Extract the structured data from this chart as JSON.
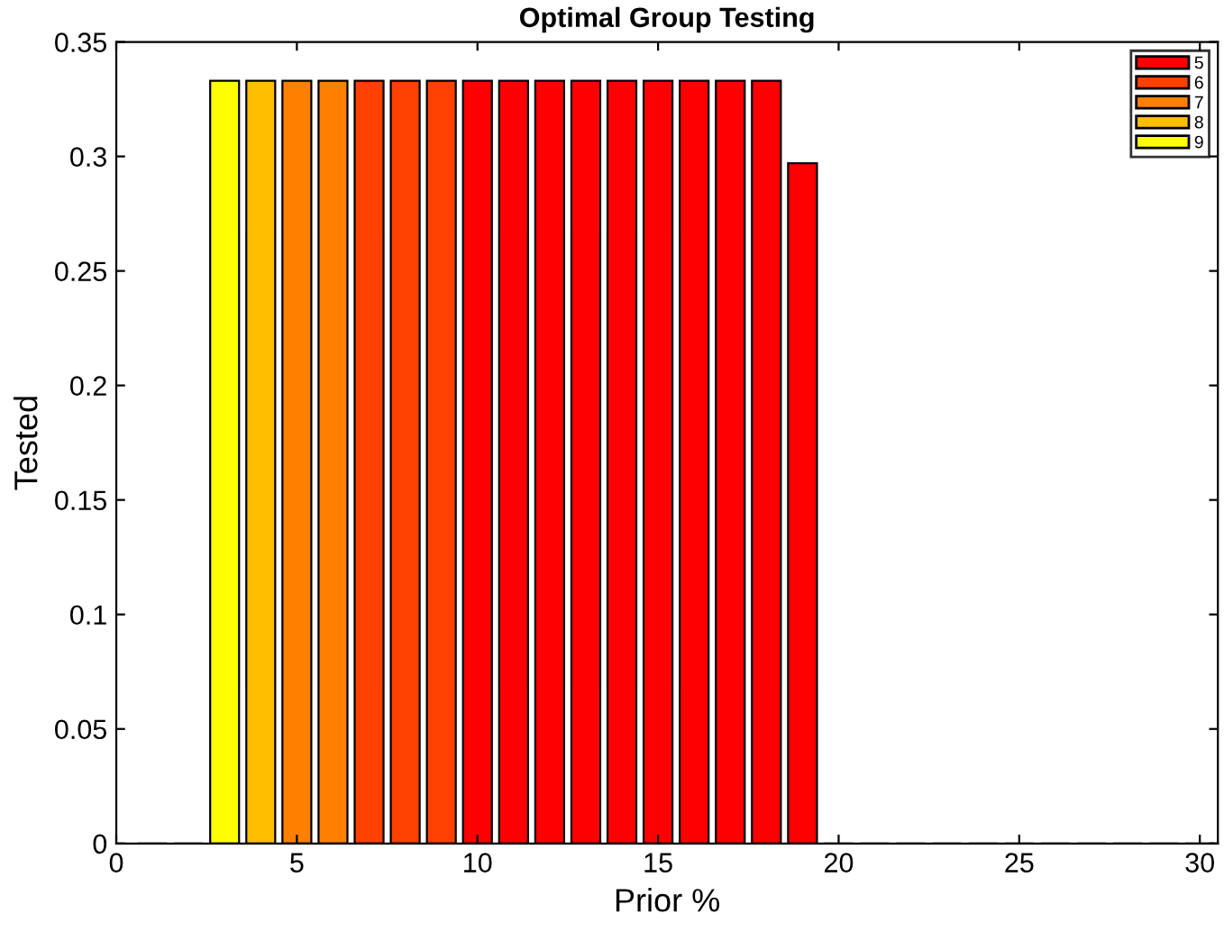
{
  "chart_data": {
    "type": "bar",
    "title": "Optimal Group Testing",
    "xlabel": "Prior %",
    "ylabel": "Tested",
    "x": [
      1,
      2,
      3,
      4,
      5,
      6,
      7,
      8,
      9,
      10,
      11,
      12,
      13,
      14,
      15,
      16,
      17,
      18,
      19,
      20,
      21,
      22,
      23,
      24,
      25,
      26,
      27,
      28,
      29,
      30
    ],
    "series": [
      {
        "name": "5",
        "color": "#ff0000",
        "values": [
          0,
          0,
          null,
          null,
          null,
          null,
          null,
          null,
          null,
          0.333,
          0.333,
          0.333,
          0.333,
          0.333,
          0.333,
          0.333,
          0.333,
          0.333,
          0.297,
          0,
          0,
          0,
          0,
          0,
          0,
          0,
          0,
          0,
          0,
          0
        ]
      },
      {
        "name": "6",
        "color": "#ff4000",
        "values": [
          null,
          null,
          null,
          null,
          null,
          null,
          0.333,
          0.333,
          0.333,
          null,
          null,
          null,
          null,
          null,
          null,
          null,
          null,
          null,
          null,
          null,
          null,
          null,
          null,
          null,
          null,
          null,
          null,
          null,
          null,
          null
        ]
      },
      {
        "name": "7",
        "color": "#ff8000",
        "values": [
          null,
          null,
          null,
          null,
          0.333,
          0.333,
          null,
          null,
          null,
          null,
          null,
          null,
          null,
          null,
          null,
          null,
          null,
          null,
          null,
          null,
          null,
          null,
          null,
          null,
          null,
          null,
          null,
          null,
          null,
          null
        ]
      },
      {
        "name": "8",
        "color": "#ffbf00",
        "values": [
          null,
          null,
          null,
          0.333,
          null,
          null,
          null,
          null,
          null,
          null,
          null,
          null,
          null,
          null,
          null,
          null,
          null,
          null,
          null,
          null,
          null,
          null,
          null,
          null,
          null,
          null,
          null,
          null,
          null,
          null
        ]
      },
      {
        "name": "9",
        "color": "#ffff00",
        "values": [
          null,
          null,
          0.333,
          null,
          null,
          null,
          null,
          null,
          null,
          null,
          null,
          null,
          null,
          null,
          null,
          null,
          null,
          null,
          null,
          null,
          null,
          null,
          null,
          null,
          null,
          null,
          null,
          null,
          null,
          null
        ]
      }
    ],
    "xlim": [
      0,
      30.5
    ],
    "xticks": [
      0,
      5,
      10,
      15,
      20,
      25,
      30
    ],
    "ylim": [
      0,
      0.35
    ],
    "yticks": [
      0,
      0.05,
      0.1,
      0.15,
      0.2,
      0.25,
      0.3,
      0.35
    ],
    "grid": false,
    "legend": "top right"
  }
}
